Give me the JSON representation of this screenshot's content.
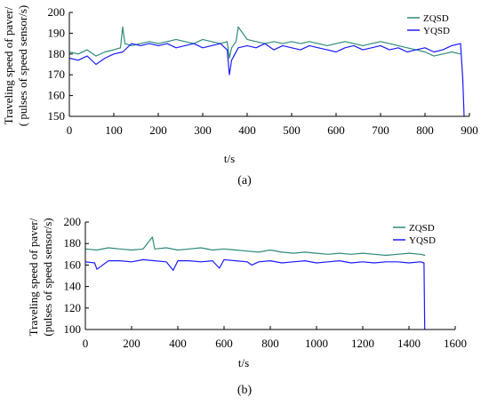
{
  "figure": {
    "caption_a": "(a)",
    "caption_b": "(b)"
  },
  "chart_data": [
    {
      "type": "line",
      "panel": "a",
      "ylabel_line1": "Traveling speed of paver/",
      "ylabel_line2": "( pulses of speed sensor/s)",
      "xlabel": "t/s",
      "xlim": [
        0,
        900
      ],
      "ylim": [
        150,
        200
      ],
      "xticks": [
        0,
        100,
        200,
        300,
        400,
        500,
        600,
        700,
        800,
        900
      ],
      "yticks": [
        150,
        160,
        170,
        180,
        190,
        200
      ],
      "grid": false,
      "legend": "top-right",
      "series": [
        {
          "name": "ZQSD",
          "color": "#2e8b7a",
          "x": [
            0,
            20,
            40,
            60,
            80,
            100,
            115,
            120,
            125,
            140,
            160,
            180,
            200,
            220,
            240,
            260,
            280,
            300,
            320,
            340,
            355,
            360,
            365,
            375,
            380,
            400,
            420,
            440,
            460,
            480,
            500,
            520,
            540,
            560,
            580,
            600,
            620,
            640,
            660,
            680,
            700,
            720,
            740,
            760,
            780,
            800,
            820,
            840,
            860,
            880
          ],
          "y": [
            181,
            180,
            182,
            179,
            181,
            182,
            183,
            193,
            185,
            184,
            185,
            186,
            185,
            186,
            187,
            186,
            185,
            187,
            186,
            185,
            186,
            178,
            183,
            186,
            193,
            187,
            186,
            185,
            186,
            185,
            186,
            185,
            186,
            185,
            184,
            185,
            186,
            185,
            184,
            185,
            186,
            185,
            184,
            183,
            182,
            181,
            179,
            180,
            181,
            180
          ]
        },
        {
          "name": "YQSD",
          "color": "#1a1aff",
          "x": [
            0,
            20,
            40,
            60,
            80,
            100,
            120,
            140,
            160,
            180,
            200,
            220,
            240,
            260,
            280,
            300,
            320,
            340,
            355,
            360,
            365,
            380,
            400,
            420,
            440,
            460,
            480,
            500,
            520,
            540,
            560,
            580,
            600,
            620,
            640,
            660,
            680,
            700,
            720,
            740,
            760,
            780,
            800,
            820,
            840,
            860,
            880,
            885,
            888
          ],
          "y": [
            178,
            177,
            179,
            175,
            178,
            180,
            181,
            185,
            184,
            185,
            184,
            185,
            183,
            184,
            185,
            183,
            184,
            185,
            182,
            170,
            177,
            183,
            184,
            183,
            185,
            182,
            184,
            183,
            182,
            184,
            183,
            182,
            181,
            183,
            184,
            182,
            183,
            184,
            182,
            183,
            181,
            182,
            183,
            181,
            182,
            184,
            185,
            168,
            150
          ]
        }
      ]
    },
    {
      "type": "line",
      "panel": "b",
      "ylabel_line1": "Traveling speed of paver/",
      "ylabel_line2": "(pulses of speed sensor/s)",
      "xlabel": "t/s",
      "xlim": [
        0,
        1600
      ],
      "ylim": [
        100,
        200
      ],
      "xticks": [
        0,
        200,
        400,
        600,
        800,
        1000,
        1200,
        1400,
        1600
      ],
      "yticks": [
        100,
        120,
        140,
        160,
        180,
        200
      ],
      "grid": false,
      "legend": "top-right",
      "series": [
        {
          "name": "ZQSD",
          "color": "#2e8b7a",
          "x": [
            0,
            50,
            100,
            150,
            200,
            250,
            290,
            300,
            350,
            400,
            450,
            500,
            550,
            600,
            650,
            700,
            750,
            800,
            850,
            900,
            950,
            1000,
            1050,
            1100,
            1150,
            1200,
            1250,
            1300,
            1350,
            1400,
            1450,
            1470
          ],
          "y": [
            175,
            174,
            176,
            175,
            174,
            175,
            186,
            175,
            176,
            174,
            175,
            176,
            174,
            175,
            174,
            173,
            172,
            174,
            172,
            171,
            172,
            171,
            170,
            171,
            170,
            171,
            170,
            169,
            170,
            171,
            170,
            169
          ]
        },
        {
          "name": "YQSD",
          "color": "#1a1aff",
          "x": [
            0,
            40,
            50,
            100,
            150,
            200,
            250,
            300,
            350,
            380,
            400,
            450,
            500,
            550,
            580,
            600,
            650,
            700,
            720,
            750,
            800,
            850,
            900,
            950,
            1000,
            1050,
            1100,
            1150,
            1200,
            1250,
            1300,
            1350,
            1400,
            1450,
            1465,
            1468
          ],
          "y": [
            163,
            162,
            156,
            164,
            164,
            163,
            165,
            164,
            163,
            155,
            164,
            164,
            163,
            164,
            157,
            165,
            164,
            163,
            160,
            163,
            164,
            162,
            163,
            164,
            162,
            163,
            164,
            162,
            163,
            162,
            163,
            163,
            162,
            163,
            162,
            100
          ]
        }
      ]
    }
  ]
}
